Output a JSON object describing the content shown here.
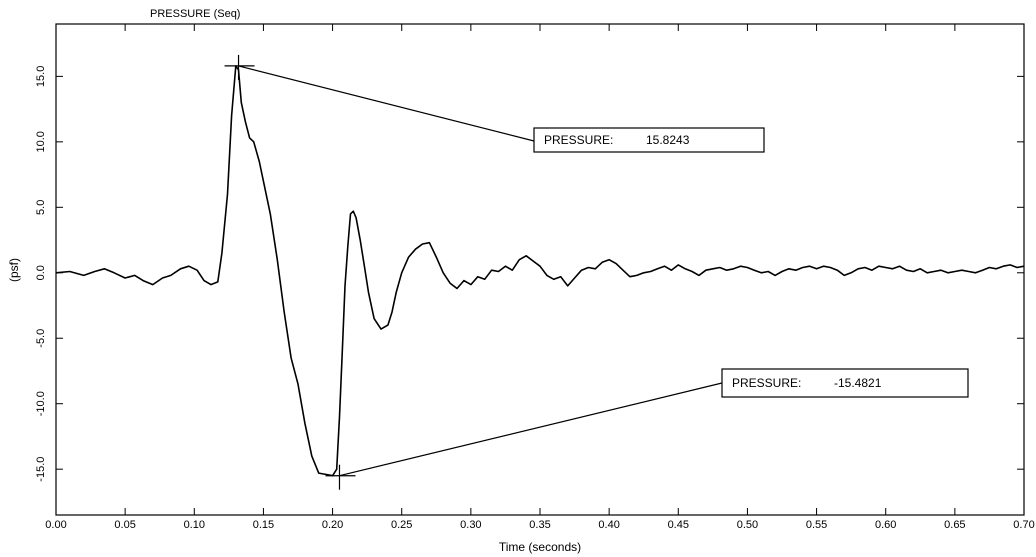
{
  "chart_data": {
    "type": "line",
    "title": "PRESSURE (Seq)",
    "xlabel": "Time (seconds)",
    "ylabel": "(psf)",
    "xlim": [
      0.0,
      0.7
    ],
    "ylim": [
      -18.5,
      19.0
    ],
    "x_ticks": [
      0.0,
      0.05,
      0.1,
      0.15,
      0.2,
      0.25,
      0.3,
      0.35,
      0.4,
      0.45,
      0.5,
      0.55,
      0.6,
      0.65,
      0.7
    ],
    "x_tick_labels": [
      "0.00",
      "0.05",
      "0.10",
      "0.15",
      "0.20",
      "0.25",
      "0.30",
      "0.35",
      "0.40",
      "0.45",
      "0.50",
      "0.55",
      "0.60",
      "0.65",
      "0.70"
    ],
    "y_ticks": [
      15.0,
      10.0,
      5.0,
      0.0,
      -5.0,
      -10.0,
      -15.0
    ],
    "y_tick_labels": [
      "15.0",
      "10.0",
      "5.0",
      "0.0",
      "-5.0",
      "-10.0",
      "-15.0"
    ],
    "grid": false,
    "series": [
      {
        "x": [
          0.0,
          0.01,
          0.02,
          0.028,
          0.035,
          0.042,
          0.05,
          0.057,
          0.063,
          0.07,
          0.077,
          0.083,
          0.09,
          0.096,
          0.102,
          0.107,
          0.112,
          0.117,
          0.12,
          0.124,
          0.127,
          0.13,
          0.132,
          0.134,
          0.137,
          0.14,
          0.143,
          0.147,
          0.15,
          0.155,
          0.16,
          0.165,
          0.17,
          0.175,
          0.18,
          0.185,
          0.19,
          0.195,
          0.2,
          0.203,
          0.205,
          0.207,
          0.209,
          0.211,
          0.213,
          0.215,
          0.217,
          0.22,
          0.223,
          0.226,
          0.23,
          0.235,
          0.24,
          0.243,
          0.246,
          0.25,
          0.255,
          0.26,
          0.265,
          0.27,
          0.275,
          0.28,
          0.285,
          0.29,
          0.295,
          0.3,
          0.305,
          0.31,
          0.315,
          0.32,
          0.325,
          0.33,
          0.335,
          0.34,
          0.345,
          0.35,
          0.355,
          0.36,
          0.365,
          0.37,
          0.375,
          0.38,
          0.385,
          0.39,
          0.395,
          0.4,
          0.405,
          0.41,
          0.415,
          0.42,
          0.425,
          0.43,
          0.435,
          0.44,
          0.445,
          0.45,
          0.455,
          0.46,
          0.465,
          0.47,
          0.475,
          0.48,
          0.485,
          0.49,
          0.495,
          0.5,
          0.505,
          0.51,
          0.515,
          0.52,
          0.525,
          0.53,
          0.535,
          0.54,
          0.545,
          0.55,
          0.555,
          0.56,
          0.565,
          0.57,
          0.575,
          0.58,
          0.585,
          0.59,
          0.595,
          0.6,
          0.605,
          0.61,
          0.615,
          0.62,
          0.625,
          0.63,
          0.635,
          0.64,
          0.645,
          0.65,
          0.655,
          0.66,
          0.665,
          0.67,
          0.675,
          0.68,
          0.685,
          0.69,
          0.695,
          0.7
        ],
        "y": [
          0.0,
          0.1,
          -0.2,
          0.1,
          0.3,
          0.0,
          -0.4,
          -0.2,
          -0.6,
          -0.9,
          -0.4,
          -0.2,
          0.3,
          0.5,
          0.2,
          -0.6,
          -0.9,
          -0.7,
          1.5,
          6.0,
          12.0,
          15.8,
          15.5,
          13.0,
          11.5,
          10.3,
          10.0,
          8.5,
          7.0,
          4.5,
          1.0,
          -3.0,
          -6.5,
          -8.5,
          -11.5,
          -14.0,
          -15.3,
          -15.4,
          -15.5,
          -15.0,
          -11.0,
          -6.0,
          -1.0,
          2.0,
          4.5,
          4.7,
          4.2,
          2.5,
          0.5,
          -1.5,
          -3.5,
          -4.3,
          -4.0,
          -3.0,
          -1.5,
          0.0,
          1.2,
          1.8,
          2.2,
          2.3,
          1.2,
          0.0,
          -0.8,
          -1.2,
          -0.6,
          -0.9,
          -0.3,
          -0.5,
          0.2,
          0.1,
          0.5,
          0.2,
          1.0,
          1.3,
          0.9,
          0.5,
          -0.2,
          -0.5,
          -0.3,
          -1.0,
          -0.4,
          0.2,
          0.4,
          0.3,
          0.8,
          1.0,
          0.7,
          0.2,
          -0.3,
          -0.2,
          0.0,
          0.1,
          0.3,
          0.5,
          0.2,
          0.6,
          0.3,
          0.1,
          -0.2,
          0.2,
          0.3,
          0.4,
          0.2,
          0.3,
          0.5,
          0.4,
          0.2,
          0.0,
          0.1,
          -0.2,
          0.1,
          0.3,
          0.2,
          0.4,
          0.5,
          0.3,
          0.5,
          0.4,
          0.2,
          -0.2,
          0.0,
          0.3,
          0.4,
          0.2,
          0.5,
          0.4,
          0.3,
          0.5,
          0.2,
          0.1,
          0.3,
          0.0,
          0.1,
          0.2,
          0.0,
          0.1,
          0.2,
          0.1,
          0.0,
          0.2,
          0.4,
          0.3,
          0.5,
          0.6,
          0.4,
          0.5
        ]
      }
    ],
    "annotations": [
      {
        "label": "PRESSURE:",
        "value": "15.8243",
        "x": 0.132,
        "y": 15.8
      },
      {
        "label": "PRESSURE:",
        "value": "-15.4821",
        "x": 0.205,
        "y": -15.5
      }
    ]
  }
}
